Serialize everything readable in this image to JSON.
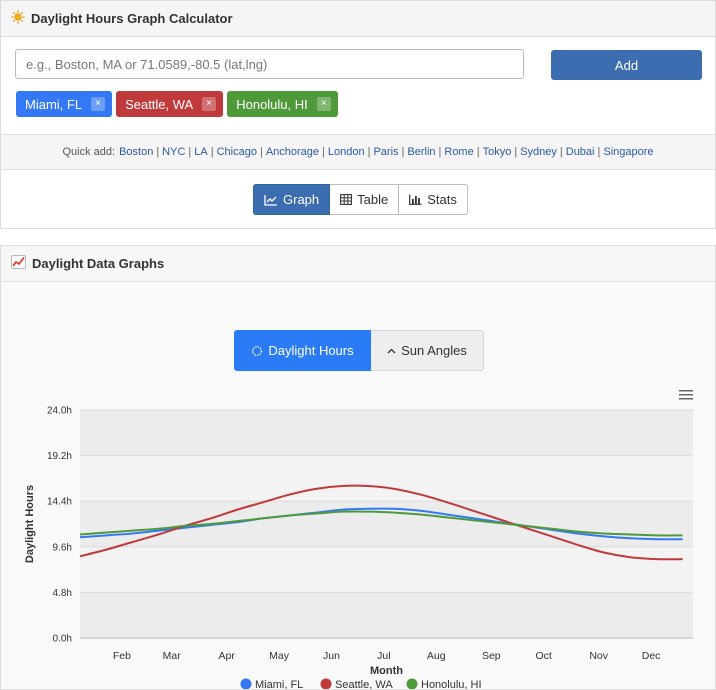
{
  "calculator": {
    "title": "Daylight Hours Graph Calculator",
    "title_icon": "sun-icon",
    "search": {
      "placeholder": "e.g., Boston, MA or 71.0589,-80.5 (lat,lng)",
      "value": ""
    },
    "add_label": "Add",
    "locations": [
      {
        "label": "Miami, FL",
        "color": "#3478f6",
        "remove": "×"
      },
      {
        "label": "Seattle, WA",
        "color": "#c0393b",
        "remove": "×"
      },
      {
        "label": "Honolulu, HI",
        "color": "#4e9a3a",
        "remove": "×"
      }
    ],
    "quick_add": {
      "label": "Quick add:",
      "cities": [
        "Boston",
        "NYC",
        "LA",
        "Chicago",
        "Anchorage",
        "London",
        "Paris",
        "Berlin",
        "Rome",
        "Tokyo",
        "Sydney",
        "Dubai",
        "Singapore"
      ],
      "separator": "|"
    },
    "view_tabs": [
      {
        "label": "Graph",
        "icon": "line-chart-icon",
        "active": true
      },
      {
        "label": "Table",
        "icon": "table-icon",
        "active": false
      },
      {
        "label": "Stats",
        "icon": "bar-chart-icon",
        "active": false
      }
    ]
  },
  "graph_panel": {
    "title": "Daylight Data Graphs",
    "title_icon": "chart-emoji-icon",
    "chart_tabs": [
      {
        "label": "Daylight Hours",
        "icon": "sun-outline-icon",
        "active": true
      },
      {
        "label": "Sun Angles",
        "icon": "caret-up-icon",
        "active": false
      }
    ],
    "menu_icon": "hamburger-menu-icon"
  },
  "chart_data": {
    "type": "line",
    "title": "",
    "xlabel": "Month",
    "ylabel": "Daylight Hours",
    "x": [
      1,
      1.5,
      2,
      2.5,
      3,
      3.5,
      4,
      4.5,
      5,
      5.5,
      6,
      6.5,
      7,
      7.5,
      8,
      8.5,
      9,
      9.5,
      10,
      10.5,
      11,
      11.5,
      12,
      12.5
    ],
    "xlim": [
      1,
      12.7
    ],
    "x_ticks": [
      {
        "label": "Feb",
        "x": 1.8
      },
      {
        "label": "Mar",
        "x": 2.75
      },
      {
        "label": "Apr",
        "x": 3.8
      },
      {
        "label": "May",
        "x": 4.8
      },
      {
        "label": "Jun",
        "x": 5.8
      },
      {
        "label": "Jul",
        "x": 6.8
      },
      {
        "label": "Aug",
        "x": 7.8
      },
      {
        "label": "Sep",
        "x": 8.85
      },
      {
        "label": "Oct",
        "x": 9.85
      },
      {
        "label": "Nov",
        "x": 10.9
      },
      {
        "label": "Dec",
        "x": 11.9
      }
    ],
    "ylim": [
      0,
      24
    ],
    "y_ticks": [
      "0.0h",
      "4.8h",
      "9.6h",
      "14.4h",
      "19.2h",
      "24.0h"
    ],
    "y_tick_values": [
      0,
      4.8,
      9.6,
      14.4,
      19.2,
      24
    ],
    "grid": true,
    "legend": "bottom-center",
    "series": [
      {
        "name": "Miami, FL",
        "color": "#3478f6",
        "values": [
          10.6,
          10.8,
          11.0,
          11.3,
          11.6,
          11.9,
          12.2,
          12.6,
          12.9,
          13.2,
          13.5,
          13.6,
          13.6,
          13.4,
          13.0,
          12.6,
          12.2,
          11.8,
          11.4,
          11.0,
          10.7,
          10.5,
          10.4,
          10.4
        ]
      },
      {
        "name": "Seattle, WA",
        "color": "#c0393b",
        "values": [
          8.6,
          9.3,
          10.1,
          10.9,
          11.8,
          12.6,
          13.5,
          14.3,
          15.1,
          15.7,
          16.0,
          16.0,
          15.7,
          15.1,
          14.3,
          13.4,
          12.5,
          11.6,
          10.7,
          9.8,
          9.0,
          8.5,
          8.3,
          8.3
        ]
      },
      {
        "name": "Honolulu, HI",
        "color": "#4e9a3a",
        "values": [
          10.9,
          11.1,
          11.3,
          11.5,
          11.8,
          12.0,
          12.3,
          12.6,
          12.9,
          13.1,
          13.3,
          13.3,
          13.2,
          13.0,
          12.7,
          12.4,
          12.1,
          11.8,
          11.5,
          11.2,
          11.0,
          10.9,
          10.8,
          10.8
        ]
      }
    ]
  }
}
